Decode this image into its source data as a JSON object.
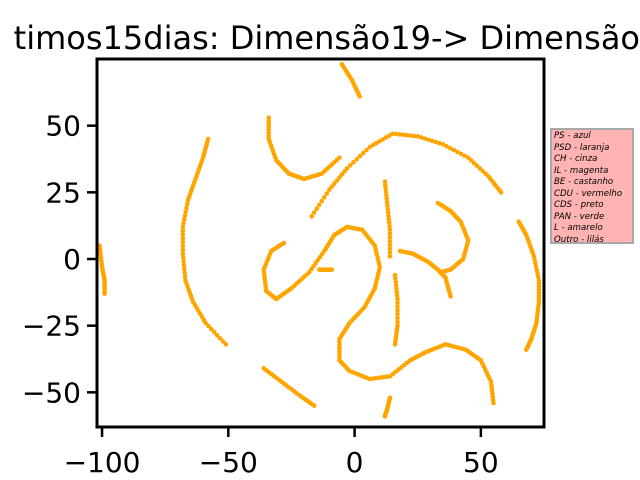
{
  "chart_data": {
    "type": "scatter",
    "title": "timos15dias: Dimensão19-> Dimensão",
    "xlabel": "",
    "ylabel": "",
    "xlim": [
      -102,
      75
    ],
    "ylim": [
      -63,
      75
    ],
    "xticks": [
      -100,
      -50,
      0,
      50
    ],
    "xtick_labels": [
      "−100",
      "−50",
      "0",
      "50"
    ],
    "yticks": [
      50,
      25,
      0,
      -25,
      -50
    ],
    "ytick_labels": [
      "50",
      "25",
      "0",
      "−25",
      "−50"
    ],
    "grid": false,
    "legend_position": "outside-right",
    "marker_color": "#ffa500",
    "series": [
      {
        "values": [
          [
            -101,
            5
          ],
          [
            -100,
            -3
          ],
          [
            -99,
            -8
          ],
          [
            -99,
            -13
          ]
        ]
      },
      {
        "values": [
          [
            -58,
            45
          ],
          [
            -60,
            38
          ],
          [
            -63,
            30
          ],
          [
            -66,
            22
          ],
          [
            -68,
            12
          ],
          [
            -68,
            2
          ],
          [
            -67,
            -8
          ],
          [
            -64,
            -16
          ],
          [
            -59,
            -24
          ],
          [
            -51,
            -32
          ]
        ]
      },
      {
        "values": [
          [
            -34,
            53
          ],
          [
            -34,
            45
          ],
          [
            -31,
            37
          ],
          [
            -26,
            32
          ],
          [
            -20,
            30
          ],
          [
            -13,
            32
          ],
          [
            -6,
            38
          ]
        ]
      },
      {
        "values": [
          [
            -5,
            73
          ],
          [
            -1,
            67
          ],
          [
            2,
            61
          ]
        ]
      },
      {
        "values": [
          [
            -36,
            -41
          ],
          [
            -29,
            -46
          ],
          [
            -22,
            -51
          ],
          [
            -16,
            -55
          ]
        ]
      },
      {
        "values": [
          [
            -8,
            9
          ],
          [
            -12,
            3
          ],
          [
            -18,
            -5
          ],
          [
            -25,
            -11
          ],
          [
            -31,
            -15
          ],
          [
            -35,
            -12
          ],
          [
            -36,
            -4
          ],
          [
            -33,
            3
          ],
          [
            -28,
            6
          ]
        ]
      },
      {
        "values": [
          [
            -8,
            9
          ],
          [
            -3,
            12
          ],
          [
            3,
            11
          ],
          [
            8,
            5
          ],
          [
            10,
            -3
          ],
          [
            8,
            -11
          ],
          [
            4,
            -18
          ],
          [
            -2,
            -24
          ],
          [
            -6,
            -30
          ],
          [
            -6,
            -38
          ],
          [
            -2,
            -42
          ],
          [
            6,
            -45
          ],
          [
            14,
            -44
          ],
          [
            22,
            -38
          ],
          [
            28,
            -35
          ],
          [
            36,
            -32
          ],
          [
            44,
            -34
          ],
          [
            50,
            -38
          ],
          [
            54,
            -46
          ],
          [
            55,
            -54
          ]
        ]
      },
      {
        "values": [
          [
            -14,
            -4
          ],
          [
            -11,
            -4
          ],
          [
            -9,
            -4
          ]
        ]
      },
      {
        "values": [
          [
            -17,
            16
          ],
          [
            -10,
            26
          ],
          [
            -3,
            34
          ],
          [
            6,
            42
          ],
          [
            15,
            47
          ],
          [
            25,
            46
          ],
          [
            35,
            43
          ],
          [
            45,
            38
          ],
          [
            53,
            31
          ],
          [
            58,
            25
          ]
        ]
      },
      {
        "values": [
          [
            12,
            29
          ],
          [
            13,
            20
          ],
          [
            14,
            11
          ],
          [
            14,
            1
          ]
        ]
      },
      {
        "values": [
          [
            16,
            -6
          ],
          [
            17,
            -15
          ],
          [
            17,
            -25
          ],
          [
            16,
            -32
          ]
        ]
      },
      {
        "values": [
          [
            18,
            3
          ],
          [
            23,
            2
          ],
          [
            29,
            -1
          ],
          [
            33,
            -4
          ],
          [
            36,
            -7
          ],
          [
            38,
            -14
          ]
        ]
      },
      {
        "values": [
          [
            33,
            21
          ],
          [
            38,
            18
          ],
          [
            42,
            14
          ],
          [
            45,
            7
          ],
          [
            43,
            0
          ],
          [
            38,
            -4
          ],
          [
            34,
            -5
          ]
        ]
      },
      {
        "values": [
          [
            65,
            14
          ],
          [
            68,
            9
          ],
          [
            71,
            1
          ],
          [
            73,
            -8
          ],
          [
            73,
            -16
          ],
          [
            72,
            -24
          ],
          [
            70,
            -30
          ],
          [
            68,
            -34
          ]
        ]
      },
      {
        "values": [
          [
            12,
            -59
          ],
          [
            13,
            -56
          ],
          [
            14,
            -52
          ]
        ]
      }
    ]
  },
  "legend": {
    "entries": [
      "PS - azul",
      "PSD - laranja",
      "CH - cinza",
      "IL - magenta",
      "BE - castanho",
      "CDU - vermelho",
      "CDS - preto",
      "PAN - verde",
      "L - amarelo",
      "Outro - lilás"
    ]
  }
}
